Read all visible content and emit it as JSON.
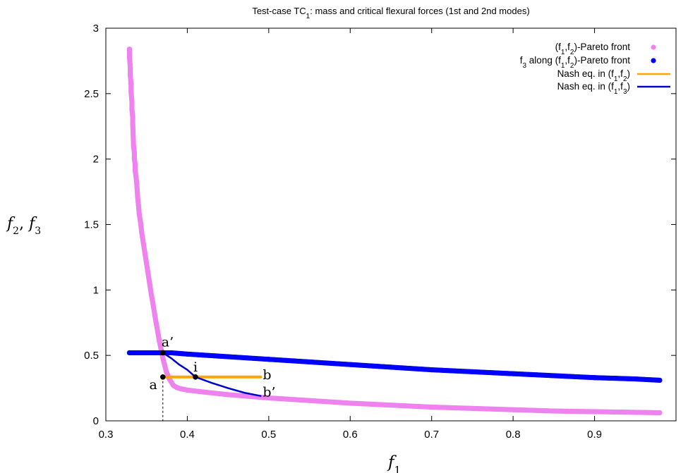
{
  "chart_data": {
    "type": "scatter",
    "title_parts": [
      "Test-case TC",
      "1",
      ": mass and critical flexural forces (1st and 2nd modes)"
    ],
    "xlabel": {
      "base": "f",
      "sub": "1"
    },
    "ylabel": [
      {
        "base": "f",
        "sub": "2"
      },
      {
        "base": "f",
        "sub": "3"
      }
    ],
    "xlim": [
      0.3,
      1.0
    ],
    "ylim": [
      0,
      3
    ],
    "xticks": [
      "0.3",
      "0.4",
      "0.5",
      "0.6",
      "0.7",
      "0.8",
      "0.9"
    ],
    "yticks": [
      "0",
      "0.5",
      "1",
      "1.5",
      "2",
      "2.5",
      "3"
    ],
    "grid": false,
    "legend_position": "top-right",
    "legend": [
      {
        "parts": [
          [
            "(f",
            ""
          ],
          [
            "1",
            "sub"
          ],
          [
            ",f",
            ""
          ],
          [
            "2",
            "sub"
          ],
          [
            ")-Pareto front",
            ""
          ]
        ],
        "color": "#ee82ee",
        "kind": "point"
      },
      {
        "parts": [
          [
            "f",
            ""
          ],
          [
            "3",
            "sub"
          ],
          [
            " along (f",
            ""
          ],
          [
            "1",
            "sub"
          ],
          [
            ",f",
            ""
          ],
          [
            "2",
            "sub"
          ],
          [
            ")-Pareto front",
            ""
          ]
        ],
        "color": "#0000ff",
        "kind": "point"
      },
      {
        "parts": [
          [
            "Nash eq. in (f",
            ""
          ],
          [
            "1",
            "sub"
          ],
          [
            ",f",
            ""
          ],
          [
            "2",
            "sub"
          ],
          [
            ")",
            ""
          ]
        ],
        "color": "#ffa500",
        "kind": "line"
      },
      {
        "parts": [
          [
            "Nash eq. in (f",
            ""
          ],
          [
            "1",
            "sub"
          ],
          [
            ",f",
            ""
          ],
          [
            "3",
            "sub"
          ],
          [
            ")",
            ""
          ]
        ],
        "color": "#0000cd",
        "kind": "line"
      }
    ],
    "series": [
      {
        "name": "(f1,f2)-Pareto front",
        "color": "#ee82ee",
        "points": [
          [
            0.329,
            2.84
          ],
          [
            0.329,
            2.78
          ],
          [
            0.33,
            2.7
          ],
          [
            0.33,
            2.64
          ],
          [
            0.331,
            2.57
          ],
          [
            0.331,
            2.51
          ],
          [
            0.332,
            2.44
          ],
          [
            0.332,
            2.38
          ],
          [
            0.333,
            2.32
          ],
          [
            0.333,
            2.27
          ],
          [
            0.334,
            2.1
          ],
          [
            0.335,
            2.05
          ],
          [
            0.335,
            2.0
          ],
          [
            0.336,
            1.96
          ],
          [
            0.336,
            1.91
          ],
          [
            0.337,
            1.87
          ],
          [
            0.338,
            1.81
          ],
          [
            0.339,
            1.71
          ],
          [
            0.34,
            1.65
          ],
          [
            0.341,
            1.58
          ],
          [
            0.343,
            1.5
          ],
          [
            0.344,
            1.44
          ],
          [
            0.346,
            1.36
          ],
          [
            0.348,
            1.28
          ],
          [
            0.35,
            1.2
          ],
          [
            0.352,
            1.12
          ],
          [
            0.354,
            1.04
          ],
          [
            0.356,
            0.96
          ],
          [
            0.358,
            0.89
          ],
          [
            0.36,
            0.81
          ],
          [
            0.362,
            0.74
          ],
          [
            0.364,
            0.67
          ],
          [
            0.366,
            0.6
          ],
          [
            0.368,
            0.54
          ],
          [
            0.37,
            0.48
          ],
          [
            0.372,
            0.43
          ],
          [
            0.374,
            0.38
          ],
          [
            0.376,
            0.35
          ],
          [
            0.378,
            0.32
          ],
          [
            0.38,
            0.3
          ],
          [
            0.383,
            0.27
          ],
          [
            0.387,
            0.255
          ],
          [
            0.392,
            0.245
          ],
          [
            0.4,
            0.235
          ],
          [
            0.42,
            0.22
          ],
          [
            0.45,
            0.2
          ],
          [
            0.48,
            0.185
          ],
          [
            0.5,
            0.175
          ],
          [
            0.55,
            0.155
          ],
          [
            0.6,
            0.135
          ],
          [
            0.65,
            0.12
          ],
          [
            0.7,
            0.105
          ],
          [
            0.75,
            0.095
          ],
          [
            0.8,
            0.085
          ],
          [
            0.85,
            0.075
          ],
          [
            0.9,
            0.07
          ],
          [
            0.95,
            0.065
          ],
          [
            0.98,
            0.062
          ]
        ]
      },
      {
        "name": "f3 along (f1,f2)-Pareto front",
        "color": "#0000ff",
        "points": [
          [
            0.329,
            0.52
          ],
          [
            0.34,
            0.52
          ],
          [
            0.36,
            0.52
          ],
          [
            0.38,
            0.52
          ],
          [
            0.4,
            0.51
          ],
          [
            0.45,
            0.49
          ],
          [
            0.5,
            0.47
          ],
          [
            0.55,
            0.45
          ],
          [
            0.6,
            0.43
          ],
          [
            0.65,
            0.41
          ],
          [
            0.7,
            0.39
          ],
          [
            0.75,
            0.375
          ],
          [
            0.8,
            0.36
          ],
          [
            0.85,
            0.345
          ],
          [
            0.9,
            0.33
          ],
          [
            0.95,
            0.32
          ],
          [
            0.98,
            0.31
          ]
        ]
      },
      {
        "name": "Nash eq. in (f1,f2)",
        "color": "#ffa500",
        "kind": "line",
        "points": [
          [
            0.37,
            0.335
          ],
          [
            0.41,
            0.335
          ],
          [
            0.45,
            0.335
          ],
          [
            0.49,
            0.335
          ]
        ]
      },
      {
        "name": "Nash eq. in (f1,f3)",
        "color": "#0000cd",
        "kind": "line",
        "points": [
          [
            0.37,
            0.52
          ],
          [
            0.38,
            0.48
          ],
          [
            0.39,
            0.43
          ],
          [
            0.4,
            0.39
          ],
          [
            0.41,
            0.335
          ],
          [
            0.43,
            0.29
          ],
          [
            0.45,
            0.25
          ],
          [
            0.47,
            0.215
          ],
          [
            0.49,
            0.19
          ]
        ]
      }
    ],
    "annotations": [
      {
        "text": "a",
        "x": 0.37,
        "y": 0.335,
        "marker": true
      },
      {
        "text": "a’",
        "x": 0.37,
        "y": 0.52,
        "marker": true
      },
      {
        "text": "i",
        "x": 0.41,
        "y": 0.335,
        "marker": true
      },
      {
        "text": "b",
        "x": 0.49,
        "y": 0.335,
        "marker": false
      },
      {
        "text": "b’",
        "x": 0.49,
        "y": 0.19,
        "marker": false
      }
    ],
    "vertical_dashed_at_x": 0.37
  }
}
